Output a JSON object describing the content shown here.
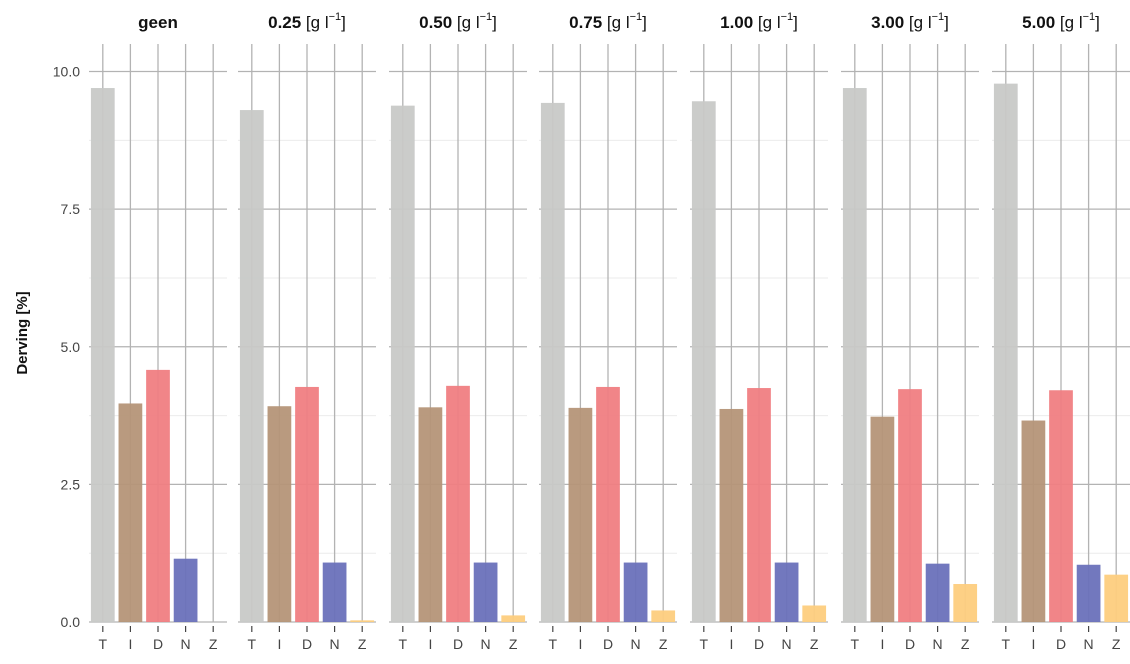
{
  "chart_data": {
    "type": "bar",
    "ylabel": "Derving [%]",
    "ylim": [
      0,
      10.5
    ],
    "y_ticks": [
      "0.0",
      "2.5",
      "5.0",
      "7.5",
      "10.0"
    ],
    "y_tick_values": [
      0,
      2.5,
      5,
      7.5,
      10
    ],
    "categories": [
      "T",
      "I",
      "D",
      "N",
      "Z"
    ],
    "category_colors": {
      "T": "#c8c9c7",
      "I": "#b59578",
      "D": "#f07e82",
      "N": "#6a71bb",
      "Z": "#fdcd7e"
    },
    "grid": true,
    "panels": [
      {
        "title_bold": "geen",
        "title_unit": "",
        "values": [
          9.7,
          3.97,
          4.58,
          1.15,
          0.0
        ]
      },
      {
        "title_bold": "0.25",
        "title_unit": "[g l",
        "values": [
          9.3,
          3.92,
          4.27,
          1.08,
          0.03
        ]
      },
      {
        "title_bold": "0.50",
        "title_unit": "[g l",
        "values": [
          9.38,
          3.9,
          4.29,
          1.08,
          0.12
        ]
      },
      {
        "title_bold": "0.75",
        "title_unit": "[g l",
        "values": [
          9.43,
          3.89,
          4.27,
          1.08,
          0.21
        ]
      },
      {
        "title_bold": "1.00",
        "title_unit": "[g l",
        "values": [
          9.46,
          3.87,
          4.25,
          1.08,
          0.3
        ]
      },
      {
        "title_bold": "3.00",
        "title_unit": "[g l",
        "values": [
          9.7,
          3.73,
          4.23,
          1.06,
          0.69
        ]
      },
      {
        "title_bold": "5.00",
        "title_unit": "[g l",
        "values": [
          9.78,
          3.66,
          4.21,
          1.04,
          0.86
        ]
      }
    ],
    "unit_exponent": "−1",
    "unit_close": "]"
  }
}
